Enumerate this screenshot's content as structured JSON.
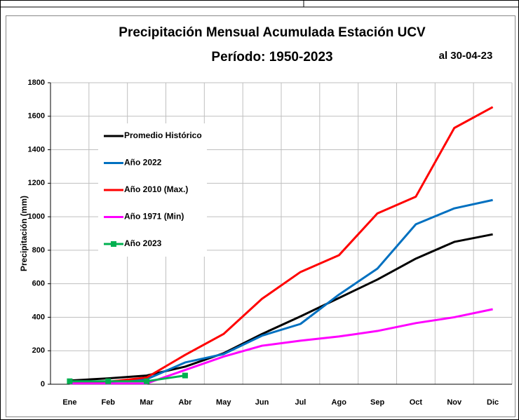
{
  "chart_data": {
    "type": "line",
    "title": "Precipitación Mensual Acumulada Estación UCV",
    "subtitle": "Período:  1950-2023",
    "annotation": "al 30-04-23",
    "y_label": "Precipitación (mm)",
    "categories": [
      "Ene",
      "Feb",
      "Mar",
      "Abr",
      "May",
      "Jun",
      "Jul",
      "Ago",
      "Sep",
      "Oct",
      "Nov",
      "Dic"
    ],
    "ylim": [
      0,
      1800
    ],
    "yticks": [
      0,
      200,
      400,
      600,
      800,
      1000,
      1200,
      1400,
      1600,
      1800
    ],
    "grid": true,
    "legend": "upper left",
    "series": [
      {
        "name": "Promedio Histórico",
        "color": "#000000",
        "values": [
          22,
          35,
          52,
          105,
          185,
          300,
          405,
          515,
          625,
          750,
          850,
          895
        ]
      },
      {
        "name": "Año 2022",
        "color": "#0070c0",
        "values": [
          10,
          15,
          30,
          130,
          180,
          290,
          360,
          535,
          690,
          955,
          1050,
          1100
        ]
      },
      {
        "name": "Año 2010 (Max.)",
        "color": "#ff0000",
        "values": [
          5,
          15,
          40,
          175,
          300,
          510,
          670,
          770,
          1020,
          1120,
          1530,
          1655
        ]
      },
      {
        "name": "Año 1971 (Min)",
        "color": "#ff00ff",
        "values": [
          5,
          5,
          5,
          85,
          165,
          230,
          260,
          285,
          318,
          365,
          400,
          448
        ]
      },
      {
        "name": "Año 2023",
        "color": "#00b050",
        "marker": "square",
        "values": [
          18,
          18,
          18,
          52,
          null,
          null,
          null,
          null,
          null,
          null,
          null,
          null
        ]
      }
    ]
  }
}
